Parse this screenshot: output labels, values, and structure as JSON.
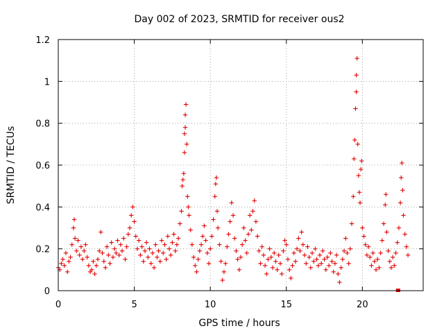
{
  "chart_data": {
    "type": "scatter",
    "title": "Day 002 of 2023, SRMTID for receiver ous2",
    "xlabel": "GPS time / hours",
    "ylabel": "SRMTID / TECUs",
    "xlim": [
      0,
      24
    ],
    "ylim": [
      0,
      1.2
    ],
    "xticks": [
      0,
      5,
      10,
      15,
      20
    ],
    "xtick_labels": [
      "0",
      "5",
      "10",
      "15",
      "20"
    ],
    "yticks": [
      0,
      0.2,
      0.4,
      0.6,
      0.8,
      1.0,
      1.2
    ],
    "ytick_labels": [
      "0",
      "0.2",
      "0.4",
      "0.6",
      "0.8",
      "1",
      "1.2"
    ],
    "grid": true,
    "marker": "plus",
    "color": "#e00000",
    "series": [
      {
        "name": "ous2",
        "points": [
          [
            0.0,
            0.11
          ],
          [
            0.1,
            0.1
          ],
          [
            0.2,
            0.13
          ],
          [
            0.3,
            0.15
          ],
          [
            0.4,
            0.12
          ],
          [
            0.5,
            0.18
          ],
          [
            0.6,
            0.09
          ],
          [
            0.7,
            0.14
          ],
          [
            0.8,
            0.16
          ],
          [
            0.9,
            0.22
          ],
          [
            1.0,
            0.3
          ],
          [
            1.05,
            0.34
          ],
          [
            1.1,
            0.25
          ],
          [
            1.2,
            0.19
          ],
          [
            1.3,
            0.24
          ],
          [
            1.4,
            0.17
          ],
          [
            1.5,
            0.21
          ],
          [
            1.6,
            0.15
          ],
          [
            1.7,
            0.19
          ],
          [
            1.8,
            0.22
          ],
          [
            1.9,
            0.16
          ],
          [
            2.0,
            0.12
          ],
          [
            2.1,
            0.09
          ],
          [
            2.2,
            0.1
          ],
          [
            2.3,
            0.14
          ],
          [
            2.4,
            0.08
          ],
          [
            2.5,
            0.12
          ],
          [
            2.6,
            0.15
          ],
          [
            2.7,
            0.19
          ],
          [
            2.8,
            0.28
          ],
          [
            2.9,
            0.18
          ],
          [
            3.0,
            0.14
          ],
          [
            3.1,
            0.11
          ],
          [
            3.2,
            0.21
          ],
          [
            3.3,
            0.17
          ],
          [
            3.4,
            0.13
          ],
          [
            3.5,
            0.23
          ],
          [
            3.6,
            0.16
          ],
          [
            3.7,
            0.2
          ],
          [
            3.8,
            0.18
          ],
          [
            3.9,
            0.24
          ],
          [
            4.0,
            0.17
          ],
          [
            4.1,
            0.22
          ],
          [
            4.2,
            0.19
          ],
          [
            4.3,
            0.25
          ],
          [
            4.4,
            0.15
          ],
          [
            4.5,
            0.21
          ],
          [
            4.6,
            0.27
          ],
          [
            4.7,
            0.3
          ],
          [
            4.8,
            0.36
          ],
          [
            4.9,
            0.4
          ],
          [
            5.0,
            0.33
          ],
          [
            5.1,
            0.26
          ],
          [
            5.2,
            0.2
          ],
          [
            5.3,
            0.24
          ],
          [
            5.4,
            0.17
          ],
          [
            5.5,
            0.21
          ],
          [
            5.6,
            0.14
          ],
          [
            5.7,
            0.19
          ],
          [
            5.8,
            0.23
          ],
          [
            5.9,
            0.16
          ],
          [
            6.0,
            0.2
          ],
          [
            6.1,
            0.13
          ],
          [
            6.2,
            0.18
          ],
          [
            6.3,
            0.11
          ],
          [
            6.4,
            0.22
          ],
          [
            6.5,
            0.16
          ],
          [
            6.6,
            0.19
          ],
          [
            6.7,
            0.14
          ],
          [
            6.8,
            0.24
          ],
          [
            6.9,
            0.18
          ],
          [
            7.0,
            0.22
          ],
          [
            7.1,
            0.15
          ],
          [
            7.2,
            0.26
          ],
          [
            7.3,
            0.2
          ],
          [
            7.4,
            0.17
          ],
          [
            7.5,
            0.23
          ],
          [
            7.6,
            0.27
          ],
          [
            7.7,
            0.19
          ],
          [
            7.8,
            0.22
          ],
          [
            7.9,
            0.25
          ],
          [
            8.0,
            0.32
          ],
          [
            8.1,
            0.38
          ],
          [
            8.15,
            0.5
          ],
          [
            8.2,
            0.53
          ],
          [
            8.25,
            0.56
          ],
          [
            8.3,
            0.66
          ],
          [
            8.3,
            0.75
          ],
          [
            8.35,
            0.78
          ],
          [
            8.35,
            0.84
          ],
          [
            8.4,
            0.89
          ],
          [
            8.45,
            0.7
          ],
          [
            8.5,
            0.45
          ],
          [
            8.55,
            0.4
          ],
          [
            8.6,
            0.36
          ],
          [
            8.7,
            0.29
          ],
          [
            8.8,
            0.22
          ],
          [
            8.9,
            0.16
          ],
          [
            9.0,
            0.12
          ],
          [
            9.1,
            0.09
          ],
          [
            9.2,
            0.15
          ],
          [
            9.3,
            0.19
          ],
          [
            9.4,
            0.22
          ],
          [
            9.5,
            0.26
          ],
          [
            9.6,
            0.31
          ],
          [
            9.7,
            0.24
          ],
          [
            9.8,
            0.18
          ],
          [
            9.9,
            0.13
          ],
          [
            10.0,
            0.2
          ],
          [
            10.1,
            0.26
          ],
          [
            10.2,
            0.34
          ],
          [
            10.3,
            0.45
          ],
          [
            10.35,
            0.51
          ],
          [
            10.4,
            0.54
          ],
          [
            10.45,
            0.38
          ],
          [
            10.5,
            0.3
          ],
          [
            10.6,
            0.22
          ],
          [
            10.7,
            0.14
          ],
          [
            10.8,
            0.05
          ],
          [
            10.9,
            0.09
          ],
          [
            11.0,
            0.13
          ],
          [
            11.1,
            0.21
          ],
          [
            11.2,
            0.27
          ],
          [
            11.3,
            0.33
          ],
          [
            11.4,
            0.42
          ],
          [
            11.5,
            0.36
          ],
          [
            11.6,
            0.25
          ],
          [
            11.7,
            0.19
          ],
          [
            11.8,
            0.15
          ],
          [
            11.9,
            0.1
          ],
          [
            12.0,
            0.16
          ],
          [
            12.1,
            0.22
          ],
          [
            12.2,
            0.3
          ],
          [
            12.3,
            0.24
          ],
          [
            12.4,
            0.18
          ],
          [
            12.5,
            0.27
          ],
          [
            12.6,
            0.36
          ],
          [
            12.7,
            0.29
          ],
          [
            12.8,
            0.38
          ],
          [
            12.9,
            0.43
          ],
          [
            13.0,
            0.33
          ],
          [
            13.1,
            0.26
          ],
          [
            13.2,
            0.19
          ],
          [
            13.3,
            0.13
          ],
          [
            13.4,
            0.21
          ],
          [
            13.5,
            0.17
          ],
          [
            13.6,
            0.12
          ],
          [
            13.7,
            0.08
          ],
          [
            13.8,
            0.15
          ],
          [
            13.9,
            0.2
          ],
          [
            14.0,
            0.16
          ],
          [
            14.1,
            0.11
          ],
          [
            14.2,
            0.18
          ],
          [
            14.3,
            0.14
          ],
          [
            14.4,
            0.1
          ],
          [
            14.5,
            0.17
          ],
          [
            14.6,
            0.13
          ],
          [
            14.7,
            0.08
          ],
          [
            14.8,
            0.19
          ],
          [
            14.9,
            0.24
          ],
          [
            15.0,
            0.22
          ],
          [
            15.1,
            0.15
          ],
          [
            15.2,
            0.1
          ],
          [
            15.3,
            0.06
          ],
          [
            15.4,
            0.12
          ],
          [
            15.5,
            0.18
          ],
          [
            15.6,
            0.14
          ],
          [
            15.7,
            0.2
          ],
          [
            15.8,
            0.25
          ],
          [
            15.9,
            0.19
          ],
          [
            16.0,
            0.28
          ],
          [
            16.1,
            0.22
          ],
          [
            16.2,
            0.17
          ],
          [
            16.3,
            0.13
          ],
          [
            16.4,
            0.21
          ],
          [
            16.5,
            0.16
          ],
          [
            16.6,
            0.11
          ],
          [
            16.7,
            0.18
          ],
          [
            16.8,
            0.14
          ],
          [
            16.9,
            0.2
          ],
          [
            17.0,
            0.15
          ],
          [
            17.1,
            0.12
          ],
          [
            17.2,
            0.17
          ],
          [
            17.3,
            0.13
          ],
          [
            17.4,
            0.19
          ],
          [
            17.5,
            0.15
          ],
          [
            17.6,
            0.1
          ],
          [
            17.7,
            0.16
          ],
          [
            17.8,
            0.12
          ],
          [
            17.9,
            0.18
          ],
          [
            18.0,
            0.14
          ],
          [
            18.1,
            0.09
          ],
          [
            18.2,
            0.13
          ],
          [
            18.3,
            0.17
          ],
          [
            18.4,
            0.08
          ],
          [
            18.5,
            0.04
          ],
          [
            18.6,
            0.11
          ],
          [
            18.7,
            0.15
          ],
          [
            18.8,
            0.19
          ],
          [
            18.9,
            0.25
          ],
          [
            19.0,
            0.18
          ],
          [
            19.1,
            0.13
          ],
          [
            19.2,
            0.2
          ],
          [
            19.3,
            0.32
          ],
          [
            19.4,
            0.45
          ],
          [
            19.45,
            0.63
          ],
          [
            19.5,
            0.72
          ],
          [
            19.55,
            0.87
          ],
          [
            19.6,
            0.95
          ],
          [
            19.6,
            1.03
          ],
          [
            19.65,
            1.11
          ],
          [
            19.7,
            0.7
          ],
          [
            19.75,
            0.55
          ],
          [
            19.8,
            0.47
          ],
          [
            19.85,
            0.42
          ],
          [
            19.9,
            0.58
          ],
          [
            19.95,
            0.62
          ],
          [
            20.0,
            0.3
          ],
          [
            20.1,
            0.26
          ],
          [
            20.2,
            0.22
          ],
          [
            20.3,
            0.17
          ],
          [
            20.4,
            0.21
          ],
          [
            20.5,
            0.16
          ],
          [
            20.6,
            0.12
          ],
          [
            20.7,
            0.18
          ],
          [
            20.8,
            0.14
          ],
          [
            20.9,
            0.1
          ],
          [
            21.0,
            0.15
          ],
          [
            21.1,
            0.11
          ],
          [
            21.2,
            0.18
          ],
          [
            21.3,
            0.24
          ],
          [
            21.4,
            0.32
          ],
          [
            21.5,
            0.41
          ],
          [
            21.55,
            0.46
          ],
          [
            21.6,
            0.28
          ],
          [
            21.7,
            0.19
          ],
          [
            21.8,
            0.14
          ],
          [
            21.9,
            0.11
          ],
          [
            22.0,
            0.16
          ],
          [
            22.1,
            0.12
          ],
          [
            22.2,
            0.18
          ],
          [
            22.3,
            0.23
          ],
          [
            22.4,
            0.3
          ],
          [
            22.5,
            0.42
          ],
          [
            22.55,
            0.54
          ],
          [
            22.6,
            0.61
          ],
          [
            22.65,
            0.48
          ],
          [
            22.7,
            0.36
          ],
          [
            22.8,
            0.27
          ],
          [
            22.9,
            0.21
          ],
          [
            23.0,
            0.17
          ]
        ]
      }
    ],
    "low_markers": [
      [
        22.35,
        0.0
      ]
    ]
  }
}
